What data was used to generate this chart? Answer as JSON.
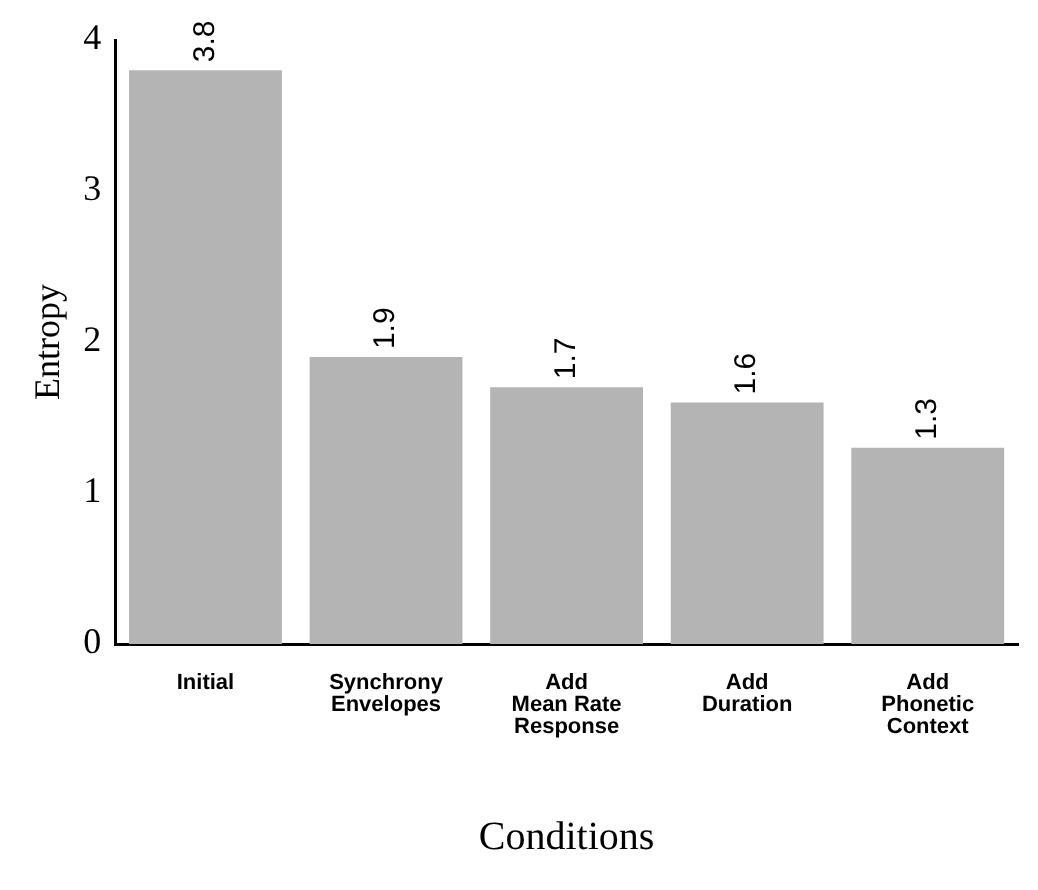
{
  "chart_data": {
    "type": "bar",
    "xlabel": "Conditions",
    "ylabel": "Entropy",
    "categories": [
      "Initial",
      "Synchrony\nEnvelopes",
      "Add\nMean Rate\nResponse",
      "Add\nDuration",
      "Add\nPhonetic\nContext"
    ],
    "values": [
      3.8,
      1.9,
      1.7,
      1.6,
      1.3
    ],
    "color": "#b4b4b4",
    "ylim": [
      0,
      4
    ],
    "yticks": [
      0,
      1,
      2,
      3,
      4
    ],
    "grid": false,
    "legend": false,
    "data_labels": true
  }
}
